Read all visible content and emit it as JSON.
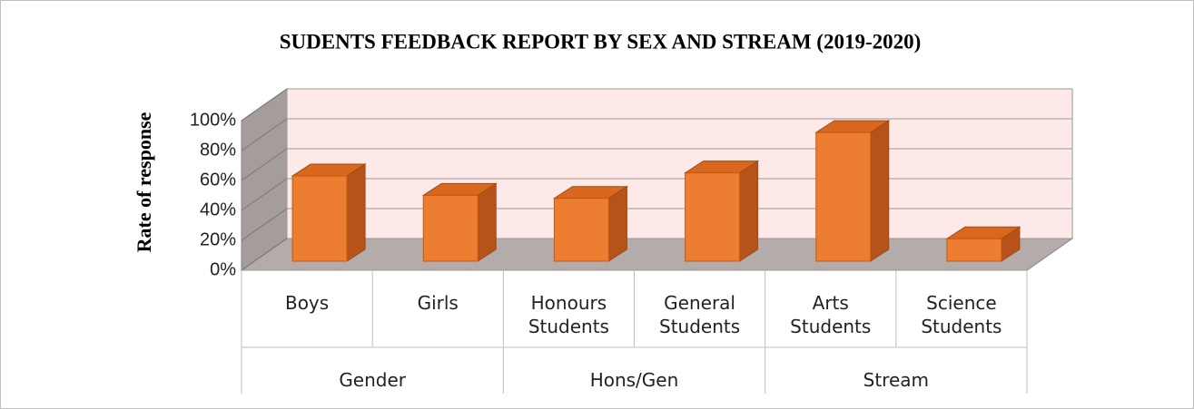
{
  "chart_data": {
    "type": "bar3d",
    "title": "SUDENTS FEEDBACK REPORT BY SEX AND STREAM (2019-2020)",
    "y_axis_label": "Rate of response",
    "categories": [
      "Boys",
      "Girls",
      "Honours Students",
      "General Students",
      "Arts Students",
      "Science Students"
    ],
    "groups": [
      "Gender",
      "Hons/Gen",
      "Stream"
    ],
    "values": [
      57,
      44,
      42,
      59,
      86,
      15
    ],
    "color": "#ed7d31",
    "ylim": [
      0,
      100
    ],
    "yticks": [
      {
        "value": 0,
        "label": "0%"
      },
      {
        "value": 20,
        "label": "20%"
      },
      {
        "value": 40,
        "label": "40%"
      },
      {
        "value": 60,
        "label": "60%"
      },
      {
        "value": 80,
        "label": "80%"
      },
      {
        "value": 100,
        "label": "100%"
      }
    ],
    "grid": true
  }
}
